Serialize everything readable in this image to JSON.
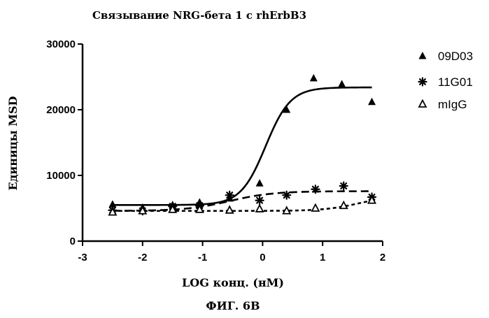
{
  "chart_data": {
    "type": "scatter",
    "title": "Связывание NRG-бета 1 с rhErbB3",
    "xlabel": "LOG конц. (нМ)",
    "ylabel": "Единицы MSD",
    "caption": "ФИГ. 6B",
    "xlim": [
      -3,
      2
    ],
    "ylim": [
      0,
      30000
    ],
    "xticks": [
      -3,
      -2,
      -1,
      0,
      1,
      2
    ],
    "yticks": [
      0,
      10000,
      20000,
      30000
    ],
    "xtick_labels": [
      "-3",
      "-2",
      "-1",
      "0",
      "1",
      "2"
    ],
    "ytick_labels": [
      "0",
      "10000",
      "20000",
      "30000"
    ],
    "grid": false,
    "legend_position": "right",
    "series": [
      {
        "name": "09D03",
        "marker": "filled-triangle",
        "line_style": "solid",
        "points": [
          {
            "x": -2.5,
            "y": 5600
          },
          {
            "x": -2.0,
            "y": 5100
          },
          {
            "x": -1.5,
            "y": 5500
          },
          {
            "x": -1.05,
            "y": 5900
          },
          {
            "x": -0.55,
            "y": 6500
          },
          {
            "x": -0.05,
            "y": 8800
          },
          {
            "x": 0.4,
            "y": 20000
          },
          {
            "x": 0.85,
            "y": 24800
          },
          {
            "x": 1.32,
            "y": 23900
          },
          {
            "x": 1.82,
            "y": 21200
          }
        ],
        "fit": {
          "bottom": 5500,
          "top": 23400,
          "logEC50": 0.05,
          "hill": 2.1
        }
      },
      {
        "name": "11G01",
        "marker": "asterisk",
        "line_style": "dashed",
        "points": [
          {
            "x": -2.5,
            "y": 4700
          },
          {
            "x": -2.0,
            "y": 4600
          },
          {
            "x": -1.5,
            "y": 5300
          },
          {
            "x": -1.05,
            "y": 5400
          },
          {
            "x": -0.55,
            "y": 7000
          },
          {
            "x": -0.05,
            "y": 6200
          },
          {
            "x": 0.4,
            "y": 7000
          },
          {
            "x": 0.88,
            "y": 7900
          },
          {
            "x": 1.35,
            "y": 8400
          },
          {
            "x": 1.82,
            "y": 6700
          }
        ],
        "fit": {
          "bottom": 4600,
          "top": 7600,
          "logEC50": -0.55,
          "hill": 1.2
        }
      },
      {
        "name": "mIgG",
        "marker": "open-triangle",
        "line_style": "dotted",
        "points": [
          {
            "x": -2.5,
            "y": 4400
          },
          {
            "x": -2.0,
            "y": 4600
          },
          {
            "x": -1.5,
            "y": 4800
          },
          {
            "x": -1.05,
            "y": 4800
          },
          {
            "x": -0.55,
            "y": 4700
          },
          {
            "x": -0.05,
            "y": 4900
          },
          {
            "x": 0.4,
            "y": 4600
          },
          {
            "x": 0.88,
            "y": 5000
          },
          {
            "x": 1.35,
            "y": 5400
          },
          {
            "x": 1.82,
            "y": 6200
          }
        ],
        "fit": {
          "bottom": 4600,
          "top": 6900,
          "logEC50": 1.6,
          "hill": 1.5
        }
      }
    ]
  }
}
